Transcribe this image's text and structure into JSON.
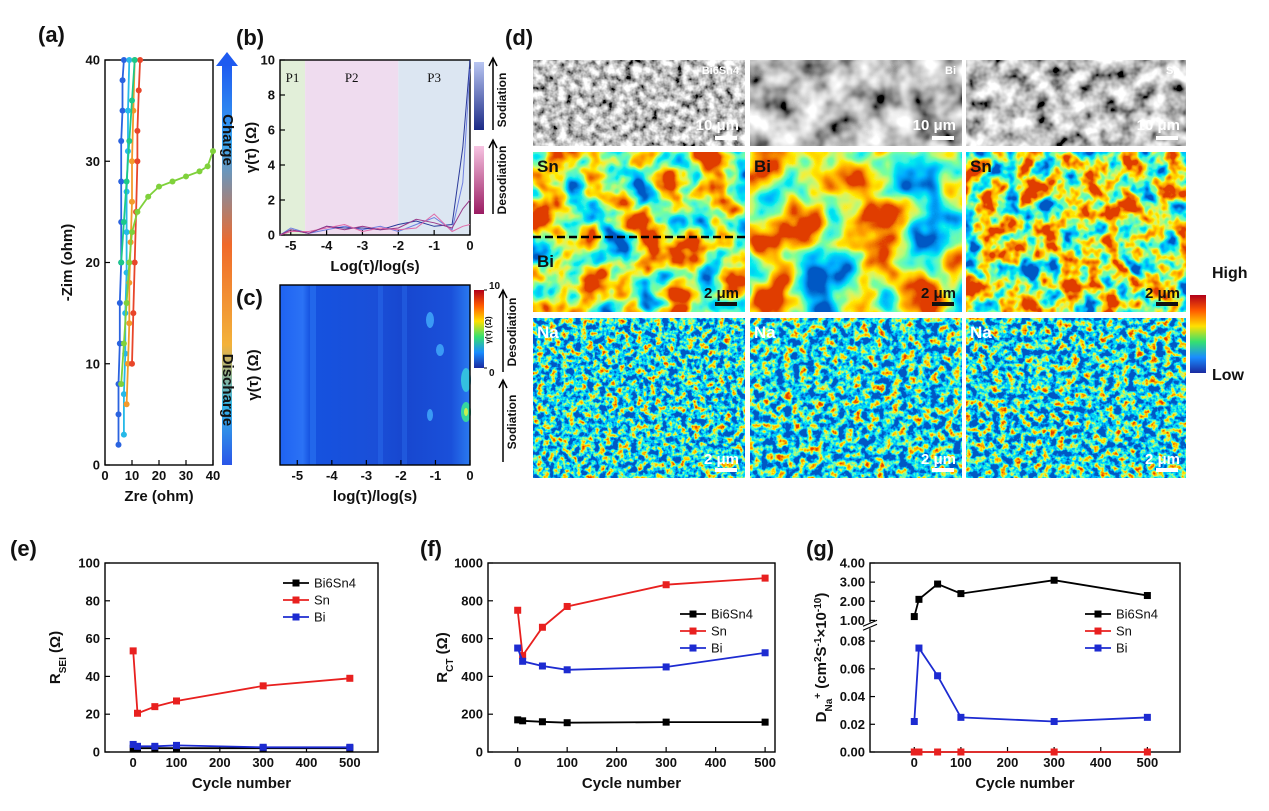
{
  "chart_data": [
    {
      "type": "line",
      "label": "(a)",
      "xlabel": "Zre (ohm)",
      "ylabel": "-Zim (ohm)",
      "marker": "circle",
      "xlim": [
        0,
        40
      ],
      "ylim": [
        0,
        40
      ],
      "xticks": [
        0,
        10,
        20,
        30,
        40
      ],
      "yticks": [
        0,
        10,
        20,
        30,
        40
      ],
      "colorbar": {
        "top": "Charge",
        "bottom": "Discharge"
      },
      "series": [
        {
          "color": "#2a63e0",
          "x": [
            5,
            5,
            5,
            5.5,
            5.5,
            6,
            6,
            6,
            6,
            6.5,
            6.5,
            7
          ],
          "values": [
            2,
            5,
            8,
            12,
            16,
            20,
            24,
            28,
            32,
            35,
            38,
            40
          ]
        },
        {
          "color": "#26b9e8",
          "x": [
            7,
            7,
            7.5,
            7.5,
            8,
            8,
            8,
            8.5,
            8.5,
            9
          ],
          "values": [
            3,
            7,
            11,
            15,
            19,
            23,
            27,
            31,
            35,
            40
          ]
        },
        {
          "color": "#f39a2b",
          "x": [
            8,
            8.5,
            9,
            9,
            9.5,
            10,
            10,
            10.5,
            11
          ],
          "values": [
            6,
            10,
            14,
            18,
            22,
            26,
            30,
            35,
            40
          ]
        },
        {
          "color": "#e8452a",
          "x": [
            10,
            10.5,
            11,
            11.5,
            12,
            12,
            12.5,
            13
          ],
          "values": [
            10,
            15,
            20,
            25,
            30,
            33,
            37,
            40
          ]
        },
        {
          "color": "#7fd13b",
          "x": [
            6,
            7,
            8,
            9,
            10,
            12,
            16,
            20,
            25,
            30,
            35,
            38,
            40
          ],
          "values": [
            8,
            12,
            16,
            20,
            23,
            25,
            26.5,
            27.5,
            28,
            28.5,
            29,
            29.5,
            31
          ]
        },
        {
          "color": "#1cc98a",
          "x": [
            6,
            7,
            8,
            9,
            10,
            11
          ],
          "values": [
            20,
            24,
            28,
            32,
            36,
            40
          ]
        }
      ]
    },
    {
      "type": "line",
      "label": "(b)",
      "xlabel": "Log(τ)/log(s)",
      "ylabel": "γ(τ) (Ω)",
      "xlim": [
        -5.3,
        0
      ],
      "ylim": [
        0,
        10
      ],
      "xticks": [
        -5,
        -4,
        -3,
        -2,
        -1,
        0
      ],
      "yticks": [
        0,
        2,
        4,
        6,
        8,
        10
      ],
      "regions": [
        {
          "label": "P1",
          "range": [
            -5.3,
            -4.6
          ],
          "color": "#e2efd9"
        },
        {
          "label": "P2",
          "range": [
            -4.6,
            -2
          ],
          "color": "#efdcef"
        },
        {
          "label": "P3",
          "range": [
            -2,
            0
          ],
          "color": "#dce6f2"
        }
      ],
      "colorbar": {
        "top": "Sodiation",
        "bottom": "Desodiation"
      },
      "x": [
        -5.3,
        -5,
        -4.5,
        -4,
        -3.5,
        -3,
        -2.5,
        -2,
        -1.5,
        -1,
        -0.5,
        -0.2,
        0
      ],
      "series": [
        {
          "color": "#6f7fe0",
          "values": [
            0,
            0.4,
            0.1,
            0.3,
            0.5,
            0.3,
            0.5,
            0.2,
            0.6,
            1.0,
            0.3,
            3,
            9.5
          ]
        },
        {
          "color": "#2b3a9a",
          "values": [
            0,
            0.3,
            0.1,
            0.5,
            0.4,
            0.4,
            0.3,
            0.6,
            0.8,
            0.5,
            0.6,
            5,
            10
          ]
        },
        {
          "color": "#e06aa8",
          "values": [
            0,
            0.2,
            0.2,
            0.4,
            0.6,
            0.2,
            0.4,
            0.3,
            0.4,
            1.2,
            0.2,
            0.5,
            0.6
          ]
        },
        {
          "color": "#9a3a8a",
          "values": [
            0,
            0.3,
            0.1,
            0.5,
            0.3,
            0.5,
            0.3,
            0.4,
            0.9,
            0.7,
            0.4,
            1.5,
            2
          ]
        }
      ]
    },
    {
      "type": "heatmap",
      "label": "(c)",
      "xlabel": "log(τ)/log(s)",
      "ylabel": "γ(τ) (Ω)",
      "xlim": [
        -5.5,
        0
      ],
      "xticks": [
        -5,
        -4,
        -3,
        -2,
        -1,
        0
      ],
      "colorbar": {
        "ticks": [
          0,
          10
        ],
        "label": "γ(τ) (Ω)",
        "top": "Desodiation",
        "bottom": "Sodiation"
      }
    },
    {
      "type": "line",
      "label": "(e)",
      "xlabel": "Cycle number",
      "ylabel": [
        "R",
        "SEI",
        " (Ω)"
      ],
      "marker": "square",
      "legend": "upper right",
      "xlim": [
        -65,
        565
      ],
      "ylim": [
        0,
        100
      ],
      "xticks": [
        0,
        100,
        200,
        300,
        400,
        500
      ],
      "yticks": [
        0,
        20,
        40,
        60,
        80,
        100
      ],
      "x": [
        0,
        10,
        50,
        100,
        300,
        500
      ],
      "series": [
        {
          "name": "Bi6Sn4",
          "color": "#000000",
          "values": [
            2,
            2,
            2,
            2,
            2,
            2
          ]
        },
        {
          "name": "Sn",
          "color": "#e8201f",
          "values": [
            53.5,
            20.5,
            24,
            27,
            35,
            39
          ]
        },
        {
          "name": "Bi",
          "color": "#1d2bd1",
          "values": [
            4,
            3,
            3,
            3.5,
            2.5,
            2.5
          ]
        }
      ]
    },
    {
      "type": "line",
      "label": "(f)",
      "xlabel": "Cycle number",
      "ylabel": [
        "R",
        "CT",
        " (Ω)"
      ],
      "marker": "square",
      "legend": "center right",
      "xlim": [
        -60,
        520
      ],
      "ylim": [
        0,
        1000
      ],
      "xticks": [
        0,
        100,
        200,
        300,
        400,
        500
      ],
      "yticks": [
        0,
        200,
        400,
        600,
        800,
        1000
      ],
      "x": [
        0,
        10,
        50,
        100,
        300,
        500
      ],
      "series": [
        {
          "name": "Bi6Sn4",
          "color": "#000000",
          "values": [
            170,
            165,
            160,
            155,
            158,
            158
          ]
        },
        {
          "name": "Sn",
          "color": "#e8201f",
          "values": [
            750,
            510,
            660,
            770,
            885,
            920
          ]
        },
        {
          "name": "Bi",
          "color": "#1d2bd1",
          "values": [
            550,
            480,
            455,
            435,
            450,
            525
          ]
        }
      ]
    },
    {
      "type": "line",
      "label": "(g)",
      "xlabel": "Cycle number",
      "ylabel": [
        "D",
        "Na",
        "+",
        " (cm",
        "2",
        "S",
        "-1",
        "×10",
        "-10",
        ")"
      ],
      "marker": "square",
      "legend": "center right",
      "xlim": [
        -95,
        570
      ],
      "ylim": [
        0,
        4
      ],
      "ybreak": [
        0.09,
        0.85
      ],
      "xticks": [
        0,
        100,
        200,
        300,
        400,
        500
      ],
      "yticks": [
        {
          "value": 0,
          "label": "0.00"
        },
        {
          "value": 0.02,
          "label": "0.02"
        },
        {
          "value": 0.04,
          "label": "0.04"
        },
        {
          "value": 0.06,
          "label": "0.06"
        },
        {
          "value": 0.08,
          "label": "0.08"
        },
        {
          "value": 1,
          "label": "1.00"
        },
        {
          "value": 2,
          "label": "2.00"
        },
        {
          "value": 3,
          "label": "3.00"
        },
        {
          "value": 4,
          "label": "4.00"
        }
      ],
      "x": [
        0,
        10,
        50,
        100,
        300,
        500
      ],
      "series": [
        {
          "name": "Bi6Sn4",
          "color": "#000000",
          "values": [
            1.2,
            2.1,
            2.9,
            2.4,
            3.1,
            2.3
          ]
        },
        {
          "name": "Sn",
          "color": "#e8201f",
          "values": [
            0,
            0,
            0,
            0,
            0,
            0
          ]
        },
        {
          "name": "Bi",
          "color": "#1d2bd1",
          "values": [
            0.022,
            0.075,
            0.055,
            0.025,
            0.022,
            0.025
          ]
        }
      ]
    }
  ],
  "micrographs": {
    "label": "(d)",
    "rows": [
      [
        {
          "tags": [
            "Bi6Sn4"
          ],
          "scale": "10 μm"
        },
        {
          "tags": [
            "Bi"
          ],
          "scale": "10 μm"
        },
        {
          "tags": [
            "Sn"
          ],
          "scale": "10 μm"
        }
      ],
      [
        {
          "tags": [
            "Sn",
            "Bi"
          ],
          "scale": "2 μm"
        },
        {
          "tags": [
            "Bi"
          ],
          "scale": "2 μm"
        },
        {
          "tags": [
            "Sn"
          ],
          "scale": "2 μm"
        }
      ],
      [
        {
          "tags": [
            "Na"
          ],
          "scale": "2 μm"
        },
        {
          "tags": [
            "Na"
          ],
          "scale": "2 μm"
        },
        {
          "tags": [
            "Na"
          ],
          "scale": "2 μm"
        }
      ]
    ],
    "colorbar": {
      "high": "High",
      "low": "Low"
    }
  }
}
